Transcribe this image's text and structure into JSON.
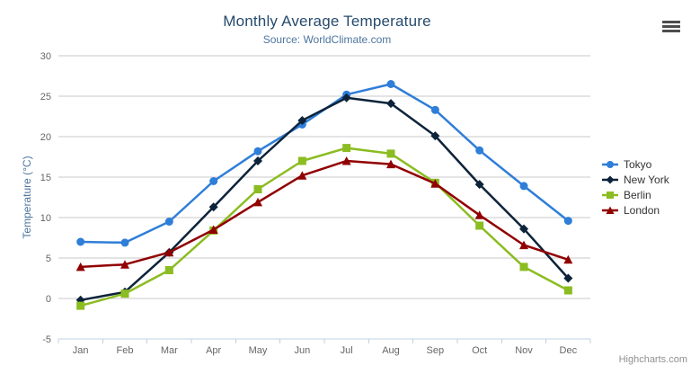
{
  "chart_data": {
    "type": "line",
    "title": "Monthly Average Temperature",
    "subtitle": "Source: WorldClimate.com",
    "ylabel": "Temperature (°C)",
    "ylim": [
      -5,
      30
    ],
    "y_tick_step": 5,
    "grid": true,
    "legend_position": "right",
    "categories": [
      "Jan",
      "Feb",
      "Mar",
      "Apr",
      "May",
      "Jun",
      "Jul",
      "Aug",
      "Sep",
      "Oct",
      "Nov",
      "Dec"
    ],
    "series": [
      {
        "name": "Tokyo",
        "marker": "circle",
        "color": "#2f7ed8",
        "values": [
          7.0,
          6.9,
          9.5,
          14.5,
          18.2,
          21.5,
          25.2,
          26.5,
          23.3,
          18.3,
          13.9,
          9.6
        ]
      },
      {
        "name": "New York",
        "marker": "diamond",
        "color": "#0d233a",
        "values": [
          -0.2,
          0.8,
          5.7,
          11.3,
          17.0,
          22.0,
          24.8,
          24.1,
          20.1,
          14.1,
          8.6,
          2.5
        ]
      },
      {
        "name": "Berlin",
        "marker": "square",
        "color": "#8bbc21",
        "values": [
          -0.9,
          0.6,
          3.5,
          8.4,
          13.5,
          17.0,
          18.6,
          17.9,
          14.3,
          9.0,
          3.9,
          1.0
        ]
      },
      {
        "name": "London",
        "marker": "triangle",
        "color": "#910000",
        "values": [
          3.9,
          4.2,
          5.7,
          8.5,
          11.9,
          15.2,
          17.0,
          16.6,
          14.2,
          10.3,
          6.6,
          4.8
        ]
      }
    ],
    "credits": "Highcharts.com"
  },
  "style_colors": {
    "title": "#274b6d",
    "subtitle": "#4d759e",
    "axis_title": "#4d759e",
    "axis_label": "#666666",
    "grid_line": "#c8c8c8",
    "axis_line": "#c0d0e0",
    "legend_text": "#333333",
    "credits": "#909090",
    "export_icon": "#4d4d4d",
    "background": "#ffffff"
  }
}
